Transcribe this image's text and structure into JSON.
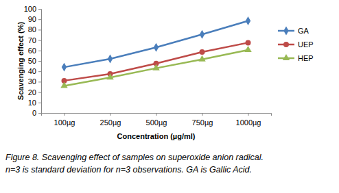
{
  "chart_data": {
    "type": "line",
    "y_label": "Scavenging effect (%)",
    "x_label": "Concentration (µg/ml)",
    "caption": [
      "Figure 8. Scavenging effect of samples on superoxide anion radical.",
      "n=3 is standard deviation for n=3 observations. GA is Gallic Acid."
    ],
    "categories": [
      "100µg",
      "250µg",
      "500µg",
      "750µg",
      "1000µg"
    ],
    "series": [
      {
        "name": "GA",
        "color": "#4a7ebb",
        "marker": "diamond",
        "values": [
          44,
          52,
          63,
          75.5,
          88.5
        ]
      },
      {
        "name": "UEP",
        "color": "#be4b48",
        "marker": "circle",
        "values": [
          31,
          37.5,
          47.5,
          58.5,
          67.5
        ]
      },
      {
        "name": "HEP",
        "color": "#98b954",
        "marker": "triangle",
        "values": [
          26,
          34,
          43,
          51.5,
          60.5
        ]
      }
    ],
    "ylim": [
      0,
      100
    ],
    "yticks": [
      0,
      10,
      20,
      30,
      40,
      50,
      60,
      70,
      80,
      90,
      100
    ],
    "grid": false,
    "legend": "right"
  }
}
